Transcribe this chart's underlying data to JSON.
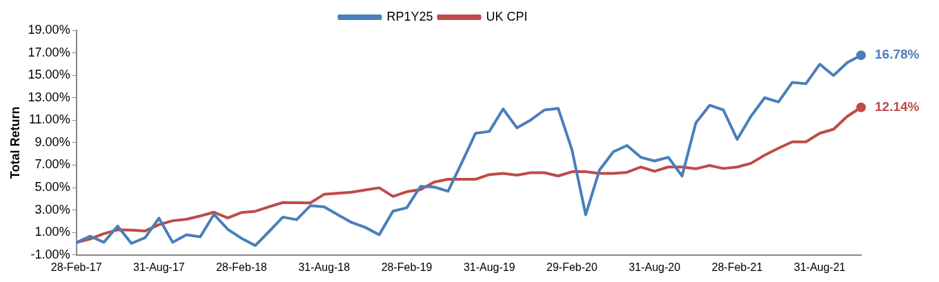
{
  "chart_data": {
    "type": "line",
    "ylabel": "Total Return",
    "categories": [
      "28-Feb-17",
      null,
      null,
      null,
      null,
      null,
      "31-Aug-17",
      null,
      null,
      null,
      null,
      null,
      "28-Feb-18",
      null,
      null,
      null,
      null,
      null,
      "31-Aug-18",
      null,
      null,
      null,
      null,
      null,
      "28-Feb-19",
      null,
      null,
      null,
      null,
      null,
      "31-Aug-19",
      null,
      null,
      null,
      null,
      null,
      "29-Feb-20",
      null,
      null,
      null,
      null,
      null,
      "31-Aug-20",
      null,
      null,
      null,
      null,
      null,
      "28-Feb-21",
      null,
      null,
      null,
      null,
      null,
      "31-Aug-21",
      null,
      null,
      null
    ],
    "series": [
      {
        "name": "RP1Y25",
        "color": "#4a7ebb",
        "values": [
          0.1,
          0.67,
          0.13,
          1.57,
          0.03,
          0.55,
          2.28,
          0.13,
          0.8,
          0.61,
          2.62,
          1.28,
          0.48,
          -0.16,
          1.09,
          2.37,
          2.14,
          3.39,
          3.29,
          2.58,
          1.89,
          1.45,
          0.8,
          2.9,
          3.2,
          5.11,
          5.05,
          4.67,
          7.22,
          9.84,
          10.0,
          12.0,
          10.32,
          11.01,
          11.91,
          12.05,
          8.37,
          2.58,
          6.55,
          8.18,
          8.75,
          7.7,
          7.37,
          7.7,
          6.03,
          10.76,
          12.33,
          11.91,
          9.29,
          11.34,
          13.0,
          12.62,
          14.36,
          14.25,
          15.99,
          14.98,
          16.13,
          16.78
        ],
        "value_labels": [
          null,
          null,
          null,
          null,
          null,
          null,
          null,
          null,
          null,
          null,
          null,
          null,
          null,
          null,
          null,
          null,
          null,
          null,
          null,
          null,
          null,
          null,
          null,
          null,
          null,
          null,
          null,
          null,
          null,
          null,
          null,
          null,
          null,
          null,
          null,
          null,
          null,
          null,
          null,
          null,
          null,
          null,
          null,
          null,
          null,
          null,
          null,
          null,
          null,
          null,
          null,
          null,
          null,
          null,
          null,
          null,
          null,
          "16.78%"
        ]
      },
      {
        "name": "UK CPI",
        "color": "#be4b48",
        "values": [
          0.1,
          0.42,
          0.9,
          1.24,
          1.22,
          1.14,
          1.7,
          2.05,
          2.18,
          2.47,
          2.81,
          2.29,
          2.78,
          2.89,
          3.29,
          3.67,
          3.66,
          3.64,
          4.4,
          4.5,
          4.59,
          4.79,
          4.98,
          4.21,
          4.63,
          4.82,
          5.49,
          5.74,
          5.74,
          5.74,
          6.16,
          6.26,
          6.11,
          6.32,
          6.32,
          6.03,
          6.41,
          6.41,
          6.26,
          6.26,
          6.36,
          6.83,
          6.45,
          6.83,
          6.83,
          6.68,
          6.97,
          6.7,
          6.83,
          7.16,
          7.89,
          8.5,
          9.07,
          9.07,
          9.84,
          10.19,
          11.34,
          12.14
        ],
        "value_labels": [
          null,
          null,
          null,
          null,
          null,
          null,
          null,
          null,
          null,
          null,
          null,
          null,
          null,
          null,
          null,
          null,
          null,
          null,
          null,
          null,
          null,
          null,
          null,
          null,
          null,
          null,
          null,
          null,
          null,
          null,
          null,
          null,
          null,
          null,
          null,
          null,
          null,
          null,
          null,
          null,
          null,
          null,
          null,
          null,
          null,
          null,
          null,
          null,
          null,
          null,
          null,
          null,
          null,
          null,
          null,
          null,
          null,
          "12.14%"
        ]
      }
    ],
    "ylim": [
      -1,
      19
    ],
    "yticks": [
      {
        "value": -1,
        "label": "-1.00%"
      },
      {
        "value": 1,
        "label": "1.00%"
      },
      {
        "value": 3,
        "label": "3.00%"
      },
      {
        "value": 5,
        "label": "5.00%"
      },
      {
        "value": 7,
        "label": "7.00%"
      },
      {
        "value": 9,
        "label": "9.00%"
      },
      {
        "value": 11,
        "label": "11.00%"
      },
      {
        "value": 13,
        "label": "13.00%"
      },
      {
        "value": 15,
        "label": "15.00%"
      },
      {
        "value": 17,
        "label": "17.00%"
      },
      {
        "value": 19,
        "label": "19.00%"
      }
    ],
    "grid": false,
    "legend": "top",
    "marker": "none",
    "line_style": "solid"
  }
}
